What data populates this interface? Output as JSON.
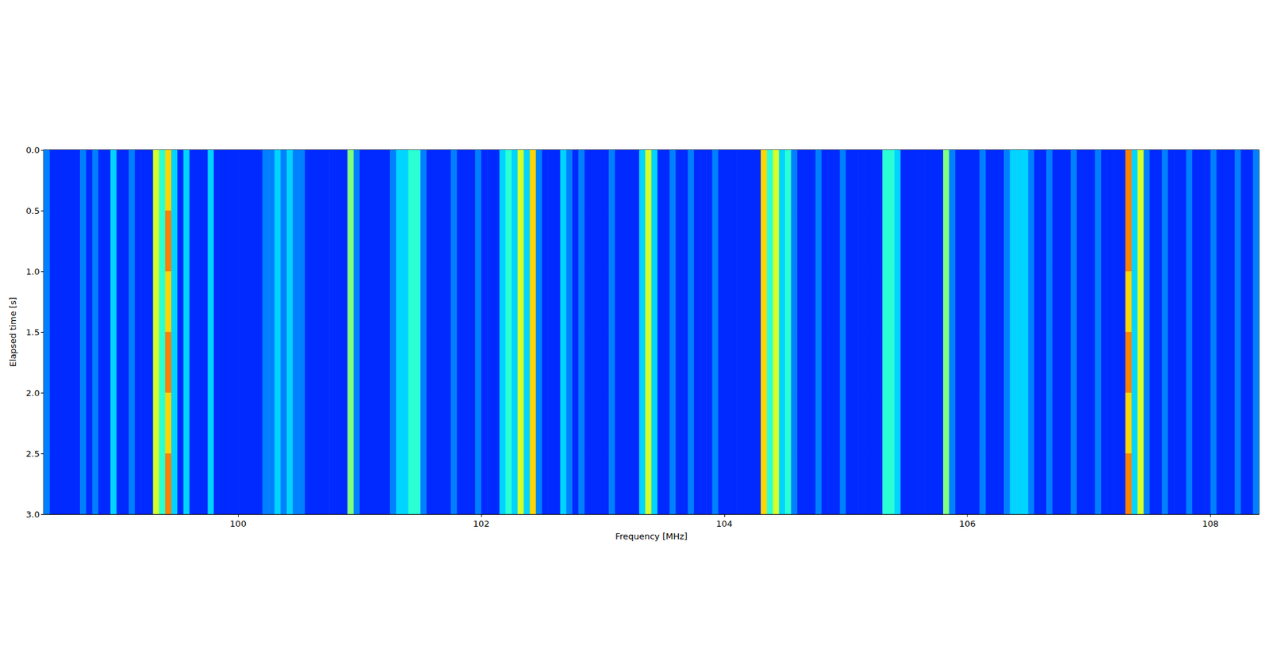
{
  "chart_data": {
    "type": "heatmap",
    "xlabel": "Frequency [MHz]",
    "ylabel": "Elapsed time [s]",
    "xlim": [
      98.4,
      108.4
    ],
    "ylim": [
      0,
      3
    ],
    "xticks": [
      100,
      102,
      104,
      106,
      108
    ],
    "yticks": [
      {
        "value": 0,
        "label": "0.0"
      },
      0.5,
      {
        "value": 1,
        "label": "1.0"
      },
      1.5,
      {
        "value": 2,
        "label": "2.0"
      },
      2.5,
      {
        "value": 3,
        "label": "3.0"
      }
    ],
    "grid": false,
    "zlim": [
      0,
      12
    ],
    "x_edges": [
      98.4,
      98.45,
      98.5,
      98.55,
      98.6,
      98.65,
      98.7,
      98.75,
      98.8,
      98.85,
      98.9,
      98.95,
      99,
      99.05,
      99.1,
      99.15,
      99.2,
      99.25,
      99.3,
      99.35,
      99.4,
      99.45,
      99.5,
      99.55,
      99.6,
      99.65,
      99.7,
      99.75,
      99.8,
      99.85,
      99.9,
      99.95,
      100,
      100.05,
      100.1,
      100.15,
      100.2,
      100.25,
      100.3,
      100.35,
      100.4,
      100.45,
      100.5,
      100.55,
      100.6,
      100.65,
      100.7,
      100.75,
      100.8,
      100.85,
      100.9,
      100.95,
      101,
      101.05,
      101.1,
      101.15,
      101.2,
      101.25,
      101.3,
      101.35,
      101.4,
      101.45,
      101.5,
      101.55,
      101.6,
      101.65,
      101.7,
      101.75,
      101.8,
      101.85,
      101.9,
      101.95,
      102,
      102.05,
      102.1,
      102.15,
      102.2,
      102.25,
      102.3,
      102.35,
      102.4,
      102.45,
      102.5,
      102.55,
      102.6,
      102.65,
      102.7,
      102.75,
      102.8,
      102.85,
      102.9,
      102.95,
      103,
      103.05,
      103.1,
      103.15,
      103.2,
      103.25,
      103.3,
      103.35,
      103.4,
      103.45,
      103.5,
      103.55,
      103.6,
      103.65,
      103.7,
      103.75,
      103.8,
      103.85,
      103.9,
      103.95,
      104,
      104.05,
      104.1,
      104.15,
      104.2,
      104.25,
      104.3,
      104.35,
      104.4,
      104.45,
      104.5,
      104.55,
      104.6,
      104.65,
      104.7,
      104.75,
      104.8,
      104.85,
      104.9,
      104.95,
      105,
      105.05,
      105.1,
      105.15,
      105.2,
      105.25,
      105.3,
      105.35,
      105.4,
      105.45,
      105.5,
      105.55,
      105.6,
      105.65,
      105.7,
      105.75,
      105.8,
      105.85,
      105.9,
      105.95,
      106,
      106.05,
      106.1,
      106.15,
      106.2,
      106.25,
      106.3,
      106.35,
      106.4,
      106.45,
      106.5,
      106.55,
      106.6,
      106.65,
      106.7,
      106.75,
      106.8,
      106.85,
      106.9,
      106.95,
      107,
      107.05,
      107.1,
      107.15,
      107.2,
      107.25,
      107.3,
      107.35,
      107.4,
      107.45,
      107.5,
      107.55,
      107.6,
      107.65,
      107.7,
      107.75,
      107.8,
      107.85,
      107.9,
      107.95,
      108,
      108.05,
      108.1,
      108.15,
      108.2,
      108.25,
      108.3,
      108.35,
      108.4
    ],
    "y_edges": [
      0,
      0.5,
      1,
      1.5,
      2,
      2.5,
      3
    ],
    "cells": [
      [
        3,
        2,
        2,
        2,
        2,
        2,
        3,
        2,
        3,
        2,
        2,
        4,
        2,
        2,
        3,
        2,
        2,
        2,
        7,
        5,
        8,
        4,
        2,
        4,
        2,
        2,
        2,
        4,
        2,
        2,
        2,
        2,
        2,
        2,
        2,
        2,
        3,
        3,
        4,
        3,
        4,
        3,
        3,
        2,
        2,
        2,
        2,
        2,
        2,
        2,
        6,
        3,
        2,
        2,
        2,
        2,
        2,
        3,
        4,
        4,
        5,
        5,
        3,
        2,
        2,
        2,
        2,
        3,
        2,
        2,
        2,
        3,
        2,
        2,
        2,
        4,
        5,
        4,
        7,
        4,
        8,
        3,
        2,
        2,
        2,
        4,
        3,
        2,
        3,
        2,
        2,
        2,
        2,
        3,
        2,
        2,
        2,
        2,
        4,
        7,
        4,
        2,
        2,
        3,
        2,
        2,
        3,
        2,
        2,
        2,
        3,
        2,
        2,
        2,
        2,
        2,
        2,
        2,
        8,
        5,
        7,
        4,
        5,
        3,
        2,
        2,
        2,
        3,
        2,
        2,
        2,
        3,
        2,
        2,
        2,
        2,
        2,
        2,
        5,
        5,
        4,
        2,
        2,
        2,
        2,
        2,
        2,
        2,
        6,
        3,
        2,
        2,
        2,
        2,
        3,
        2,
        2,
        2,
        3,
        4,
        4,
        4,
        3,
        2,
        2,
        3,
        2,
        2,
        2,
        3,
        2,
        2,
        2,
        3,
        2,
        2,
        2,
        2,
        9,
        4,
        7,
        3,
        2,
        2,
        3,
        2,
        2,
        2,
        3,
        2,
        2,
        2,
        3,
        2,
        2,
        2,
        3,
        2,
        2,
        3
      ],
      [
        3,
        2,
        2,
        2,
        2,
        2,
        3,
        2,
        3,
        2,
        2,
        4,
        2,
        2,
        3,
        2,
        2,
        2,
        7,
        5,
        9,
        4,
        2,
        4,
        2,
        2,
        2,
        4,
        2,
        2,
        2,
        2,
        2,
        2,
        2,
        2,
        3,
        3,
        4,
        3,
        4,
        3,
        3,
        2,
        2,
        2,
        2,
        2,
        2,
        2,
        6,
        3,
        2,
        2,
        2,
        2,
        2,
        3,
        4,
        4,
        5,
        5,
        3,
        2,
        2,
        2,
        2,
        3,
        2,
        2,
        2,
        3,
        2,
        2,
        2,
        4,
        5,
        4,
        7,
        4,
        8,
        3,
        2,
        2,
        2,
        4,
        3,
        2,
        3,
        2,
        2,
        2,
        2,
        3,
        2,
        2,
        2,
        2,
        4,
        7,
        4,
        2,
        2,
        3,
        2,
        2,
        3,
        2,
        2,
        2,
        3,
        2,
        2,
        2,
        2,
        2,
        2,
        2,
        8,
        5,
        7,
        4,
        5,
        3,
        2,
        2,
        2,
        3,
        2,
        2,
        2,
        3,
        2,
        2,
        2,
        2,
        2,
        2,
        5,
        5,
        4,
        2,
        2,
        2,
        2,
        2,
        2,
        2,
        6,
        3,
        2,
        2,
        2,
        2,
        3,
        2,
        2,
        2,
        3,
        4,
        4,
        4,
        3,
        2,
        2,
        3,
        2,
        2,
        2,
        3,
        2,
        2,
        2,
        3,
        2,
        2,
        2,
        2,
        9,
        4,
        7,
        3,
        2,
        2,
        3,
        2,
        2,
        2,
        3,
        2,
        2,
        2,
        3,
        2,
        2,
        2,
        3,
        2,
        2,
        3
      ],
      [
        3,
        2,
        2,
        2,
        2,
        2,
        3,
        2,
        3,
        2,
        2,
        4,
        2,
        2,
        3,
        2,
        2,
        2,
        7,
        5,
        8,
        4,
        2,
        4,
        2,
        2,
        2,
        4,
        2,
        2,
        2,
        2,
        2,
        2,
        2,
        2,
        3,
        3,
        4,
        3,
        4,
        3,
        3,
        2,
        2,
        2,
        2,
        2,
        2,
        2,
        6,
        3,
        2,
        2,
        2,
        2,
        2,
        3,
        4,
        4,
        5,
        5,
        3,
        2,
        2,
        2,
        2,
        3,
        2,
        2,
        2,
        3,
        2,
        2,
        2,
        4,
        5,
        4,
        7,
        4,
        8,
        3,
        2,
        2,
        2,
        4,
        3,
        2,
        3,
        2,
        2,
        2,
        2,
        3,
        2,
        2,
        2,
        2,
        4,
        7,
        4,
        2,
        2,
        3,
        2,
        2,
        3,
        2,
        2,
        2,
        3,
        2,
        2,
        2,
        2,
        2,
        2,
        2,
        8,
        5,
        7,
        4,
        5,
        3,
        2,
        2,
        2,
        3,
        2,
        2,
        2,
        3,
        2,
        2,
        2,
        2,
        2,
        2,
        5,
        5,
        4,
        2,
        2,
        2,
        2,
        2,
        2,
        2,
        6,
        3,
        2,
        2,
        2,
        2,
        3,
        2,
        2,
        2,
        3,
        4,
        4,
        4,
        3,
        2,
        2,
        3,
        2,
        2,
        2,
        3,
        2,
        2,
        2,
        3,
        2,
        2,
        2,
        2,
        8,
        4,
        7,
        3,
        2,
        2,
        3,
        2,
        2,
        2,
        3,
        2,
        2,
        2,
        3,
        2,
        2,
        2,
        3,
        2,
        2,
        3
      ],
      [
        3,
        2,
        2,
        2,
        2,
        2,
        3,
        2,
        3,
        2,
        2,
        4,
        2,
        2,
        3,
        2,
        2,
        2,
        7,
        5,
        9,
        4,
        2,
        4,
        2,
        2,
        2,
        4,
        2,
        2,
        2,
        2,
        2,
        2,
        2,
        2,
        3,
        3,
        4,
        3,
        4,
        3,
        3,
        2,
        2,
        2,
        2,
        2,
        2,
        2,
        6,
        3,
        2,
        2,
        2,
        2,
        2,
        3,
        4,
        4,
        5,
        5,
        3,
        2,
        2,
        2,
        2,
        3,
        2,
        2,
        2,
        3,
        2,
        2,
        2,
        4,
        5,
        4,
        7,
        4,
        8,
        3,
        2,
        2,
        2,
        4,
        3,
        2,
        3,
        2,
        2,
        2,
        2,
        3,
        2,
        2,
        2,
        2,
        4,
        7,
        4,
        2,
        2,
        3,
        2,
        2,
        3,
        2,
        2,
        2,
        3,
        2,
        2,
        2,
        2,
        2,
        2,
        2,
        8,
        5,
        7,
        4,
        5,
        3,
        2,
        2,
        2,
        3,
        2,
        2,
        2,
        3,
        2,
        2,
        2,
        2,
        2,
        2,
        5,
        5,
        4,
        2,
        2,
        2,
        2,
        2,
        2,
        2,
        6,
        3,
        2,
        2,
        2,
        2,
        3,
        2,
        2,
        2,
        3,
        4,
        4,
        4,
        3,
        2,
        2,
        3,
        2,
        2,
        2,
        3,
        2,
        2,
        2,
        3,
        2,
        2,
        2,
        2,
        9,
        4,
        7,
        3,
        2,
        2,
        3,
        2,
        2,
        2,
        3,
        2,
        2,
        2,
        3,
        2,
        2,
        2,
        3,
        2,
        2,
        3
      ],
      [
        3,
        2,
        2,
        2,
        2,
        2,
        3,
        2,
        3,
        2,
        2,
        4,
        2,
        2,
        3,
        2,
        2,
        2,
        7,
        5,
        8,
        4,
        2,
        4,
        2,
        2,
        2,
        4,
        2,
        2,
        2,
        2,
        2,
        2,
        2,
        2,
        3,
        3,
        4,
        3,
        4,
        3,
        3,
        2,
        2,
        2,
        2,
        2,
        2,
        2,
        6,
        3,
        2,
        2,
        2,
        2,
        2,
        3,
        4,
        4,
        5,
        5,
        3,
        2,
        2,
        2,
        2,
        3,
        2,
        2,
        2,
        3,
        2,
        2,
        2,
        4,
        5,
        4,
        7,
        4,
        8,
        3,
        2,
        2,
        2,
        4,
        3,
        2,
        3,
        2,
        2,
        2,
        2,
        3,
        2,
        2,
        2,
        2,
        4,
        7,
        4,
        2,
        2,
        3,
        2,
        2,
        3,
        2,
        2,
        2,
        3,
        2,
        2,
        2,
        2,
        2,
        2,
        2,
        8,
        5,
        7,
        4,
        5,
        3,
        2,
        2,
        2,
        3,
        2,
        2,
        2,
        3,
        2,
        2,
        2,
        2,
        2,
        2,
        5,
        5,
        4,
        2,
        2,
        2,
        2,
        2,
        2,
        2,
        6,
        3,
        2,
        2,
        2,
        2,
        3,
        2,
        2,
        2,
        3,
        4,
        4,
        4,
        3,
        2,
        2,
        3,
        2,
        2,
        2,
        3,
        2,
        2,
        2,
        3,
        2,
        2,
        2,
        2,
        8,
        4,
        7,
        3,
        2,
        2,
        3,
        2,
        2,
        2,
        3,
        2,
        2,
        2,
        3,
        2,
        2,
        2,
        3,
        2,
        2,
        3
      ],
      [
        3,
        2,
        2,
        2,
        2,
        2,
        3,
        2,
        3,
        2,
        2,
        4,
        2,
        2,
        3,
        2,
        2,
        2,
        7,
        5,
        9,
        4,
        2,
        4,
        2,
        2,
        2,
        4,
        2,
        2,
        2,
        2,
        2,
        2,
        2,
        2,
        3,
        3,
        4,
        3,
        4,
        3,
        3,
        2,
        2,
        2,
        2,
        2,
        2,
        2,
        6,
        3,
        2,
        2,
        2,
        2,
        2,
        3,
        4,
        4,
        5,
        5,
        3,
        2,
        2,
        2,
        2,
        3,
        2,
        2,
        2,
        3,
        2,
        2,
        2,
        4,
        5,
        4,
        7,
        4,
        8,
        3,
        2,
        2,
        2,
        4,
        3,
        2,
        3,
        2,
        2,
        2,
        2,
        3,
        2,
        2,
        2,
        2,
        4,
        7,
        4,
        2,
        2,
        3,
        2,
        2,
        3,
        2,
        2,
        2,
        3,
        2,
        2,
        2,
        2,
        2,
        2,
        2,
        8,
        5,
        7,
        4,
        5,
        3,
        2,
        2,
        2,
        3,
        2,
        2,
        2,
        3,
        2,
        2,
        2,
        2,
        2,
        2,
        5,
        5,
        4,
        2,
        2,
        2,
        2,
        2,
        2,
        2,
        6,
        3,
        2,
        2,
        2,
        2,
        3,
        2,
        2,
        2,
        3,
        4,
        4,
        4,
        3,
        2,
        2,
        3,
        2,
        2,
        2,
        3,
        2,
        2,
        2,
        3,
        2,
        2,
        2,
        2,
        9,
        4,
        7,
        3,
        2,
        2,
        3,
        2,
        2,
        2,
        3,
        2,
        2,
        2,
        3,
        2,
        2,
        2,
        3,
        2,
        2,
        3
      ]
    ]
  }
}
